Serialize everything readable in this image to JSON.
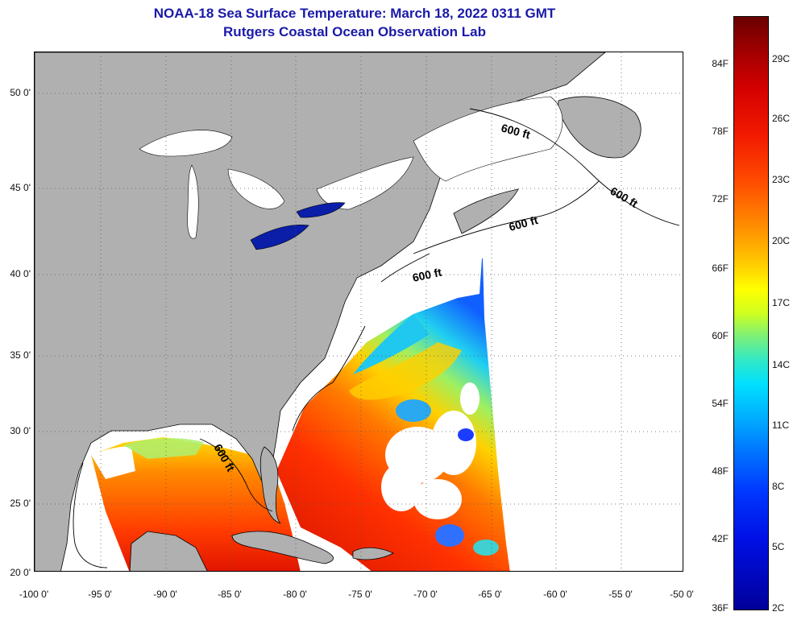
{
  "title_line1": "NOAA-18 Sea Surface Temperature:  March 18, 2022 0311 GMT",
  "title_line2": "Rutgers Coastal Ocean Observation Lab",
  "lat_ticks": [
    "50 0'",
    "45 0'",
    "40 0'",
    "35 0'",
    "30 0'",
    "25 0'",
    "20 0'"
  ],
  "lon_ticks": [
    "-100 0'",
    "-95 0'",
    "-90 0'",
    "-85 0'",
    "-80 0'",
    "-75 0'",
    "-70 0'",
    "-65 0'",
    "-60 0'",
    "-55 0'",
    "-50 0'"
  ],
  "isobath_labels": [
    "600 ft",
    "600 ft",
    "600 ft",
    "600 ft",
    "600 ft"
  ],
  "colorbar": {
    "fahrenheit": [
      "84F",
      "78F",
      "72F",
      "66F",
      "60F",
      "54F",
      "48F",
      "42F",
      "36F"
    ],
    "celsius": [
      "29C",
      "26C",
      "23C",
      "20C",
      "17C",
      "14C",
      "11C",
      "8C",
      "5C",
      "2C"
    ],
    "colors": {
      "max": "#6a0000",
      "min": "#00009a"
    }
  },
  "colors": {
    "land": "#b0b0b0",
    "lakes": "#ffffff",
    "no_data": "#ffffff",
    "title": "#1a1aa8"
  }
}
